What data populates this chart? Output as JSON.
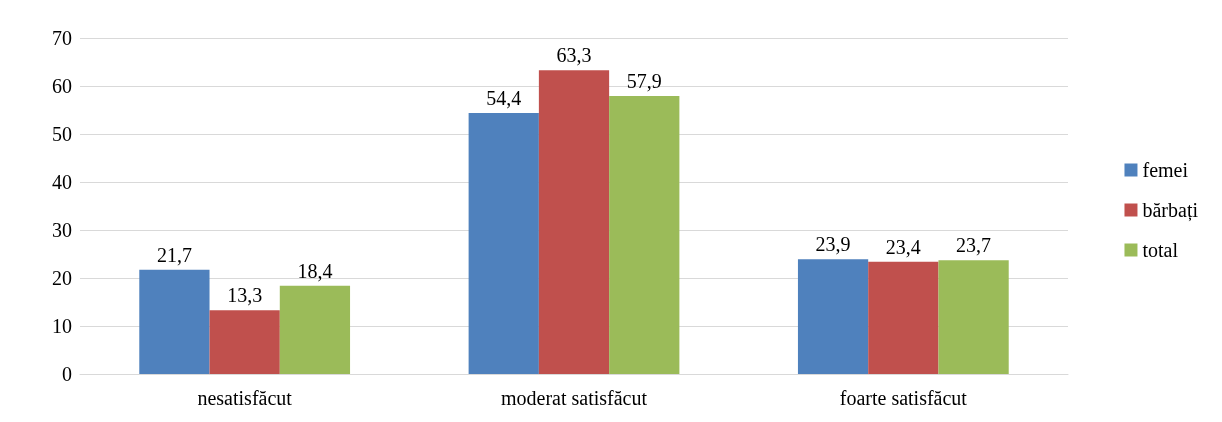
{
  "chart_data": {
    "type": "bar",
    "categories": [
      "nesatisfăcut",
      "moderat satisfăcut",
      "foarte satisfăcut"
    ],
    "series": [
      {
        "name": "femei",
        "color": "#4f81bd",
        "values": [
          21.7,
          54.4,
          23.9
        ],
        "value_labels": [
          "21,7",
          "54,4",
          "23,9"
        ]
      },
      {
        "name": "bărbați",
        "color": "#c0504d",
        "values": [
          13.3,
          63.3,
          23.4
        ],
        "value_labels": [
          "13,3",
          "63,3",
          "23,4"
        ]
      },
      {
        "name": "total",
        "color": "#9bbb59",
        "values": [
          18.4,
          57.9,
          23.7
        ],
        "value_labels": [
          "18,4",
          "57,9",
          "23,7"
        ]
      }
    ],
    "ylim": [
      0,
      70
    ],
    "yticks": [
      0,
      10,
      20,
      30,
      40,
      50,
      60,
      70
    ],
    "grid": "y",
    "legend": "right"
  }
}
